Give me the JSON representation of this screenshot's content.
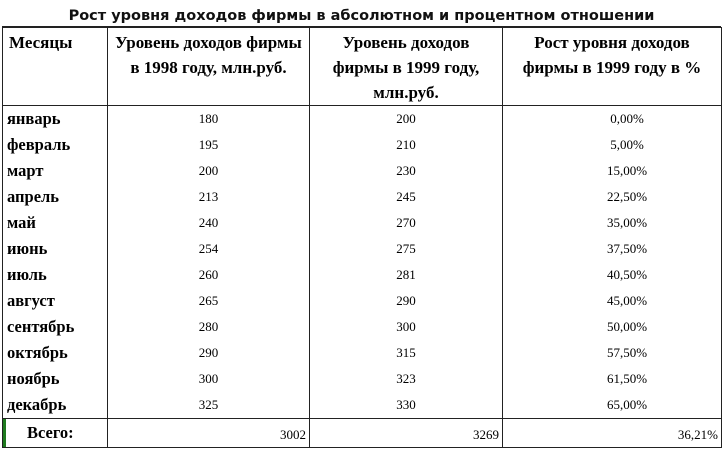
{
  "title": "Рост уровня доходов фирмы в абсолютном и процентном отношении",
  "headers": {
    "months": "Месяцы",
    "income_1998": "Уровень доходов фирмы в 1998 году, млн.руб.",
    "income_1999": "Уровень доходов фирмы в 1999 году, млн.руб.",
    "growth_1999": "Рост уровня доходов фирмы в 1999 году в %"
  },
  "rows": [
    {
      "month": "январь",
      "y1998": "180",
      "y1999": "200",
      "growth": "0,00%"
    },
    {
      "month": "февраль",
      "y1998": "195",
      "y1999": "210",
      "growth": "5,00%"
    },
    {
      "month": "март",
      "y1998": "200",
      "y1999": "230",
      "growth": "15,00%"
    },
    {
      "month": "апрель",
      "y1998": "213",
      "y1999": "245",
      "growth": "22,50%"
    },
    {
      "month": "май",
      "y1998": "240",
      "y1999": "270",
      "growth": "35,00%"
    },
    {
      "month": "июнь",
      "y1998": "254",
      "y1999": "275",
      "growth": "37,50%"
    },
    {
      "month": "июль",
      "y1998": "260",
      "y1999": "281",
      "growth": "40,50%"
    },
    {
      "month": "август",
      "y1998": "265",
      "y1999": "290",
      "growth": "45,00%"
    },
    {
      "month": "сентябрь",
      "y1998": "280",
      "y1999": "300",
      "growth": "50,00%"
    },
    {
      "month": "октябрь",
      "y1998": "290",
      "y1999": "315",
      "growth": "57,50%"
    },
    {
      "month": "ноябрь",
      "y1998": "300",
      "y1999": "323",
      "growth": "61,50%"
    },
    {
      "month": "декабрь",
      "y1998": "325",
      "y1999": "330",
      "growth": "65,00%"
    }
  ],
  "total": {
    "label": "Всего:",
    "y1998": "3002",
    "y1999": "3269",
    "growth": "36,21%"
  },
  "colors": {
    "selected_cell_marker": "#1e7a1e",
    "grid": "#222222"
  }
}
